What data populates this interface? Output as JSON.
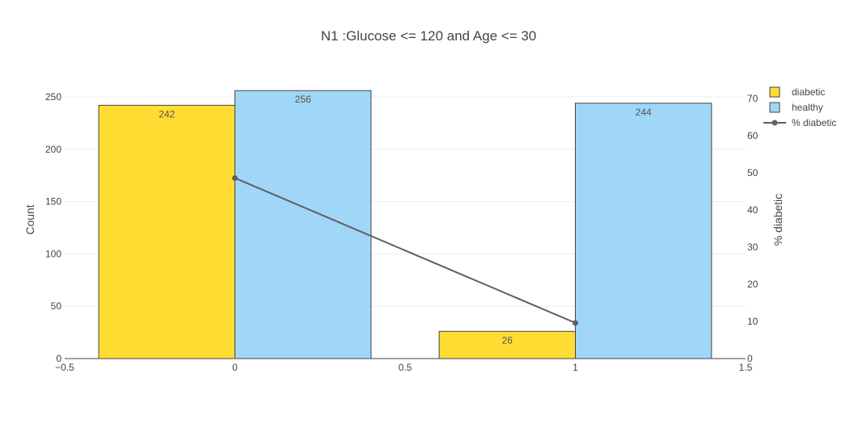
{
  "chart_data": {
    "type": "bar",
    "title": "N1 :Glucose <= 120 and Age <= 30",
    "categories": [
      0,
      1
    ],
    "series": [
      {
        "name": "diabetic",
        "type": "bar",
        "axis": "y",
        "values": [
          242,
          26
        ],
        "color": "#ffdd33"
      },
      {
        "name": "healthy",
        "type": "bar",
        "axis": "y",
        "values": [
          256,
          244
        ],
        "color": "#a0d6f8"
      },
      {
        "name": "% diabetic",
        "type": "line",
        "axis": "y2",
        "values": [
          48.6,
          9.6
        ],
        "color": "#606060"
      }
    ],
    "xlabel": "",
    "ylabel": "Count",
    "y2label": "% diabetic",
    "xlim": [
      -0.5,
      1.5
    ],
    "ylim": [
      0,
      250
    ],
    "y2lim": [
      0,
      70
    ],
    "xticks": [
      "−0.5",
      "0",
      "0.5",
      "1",
      "1.5"
    ],
    "yticks": [
      "0",
      "50",
      "100",
      "150",
      "200",
      "250"
    ],
    "y2ticks": [
      "0",
      "10",
      "20",
      "30",
      "40",
      "50",
      "60",
      "70"
    ],
    "grid": true,
    "legend": "top-right"
  }
}
